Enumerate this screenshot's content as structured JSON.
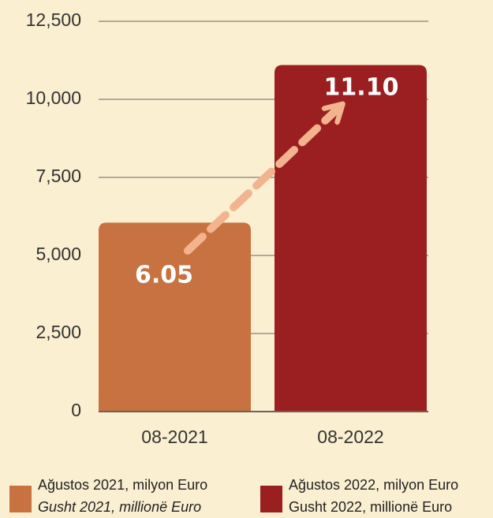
{
  "chart_data": {
    "type": "bar",
    "categories": [
      "08-2021",
      "08-2022"
    ],
    "values": [
      6050,
      11100
    ],
    "value_labels": [
      "6.05",
      "11.10"
    ],
    "colors": [
      "#c87241",
      "#9b1f20"
    ],
    "ylim": [
      0,
      12500
    ],
    "yticks": [
      {
        "value": 0,
        "label": "0"
      },
      {
        "value": 2500,
        "label": "2,500"
      },
      {
        "value": 5000,
        "label": "5,000"
      },
      {
        "value": 7500,
        "label": "7,500"
      },
      {
        "value": 10000,
        "label": "10,000"
      },
      {
        "value": 12500,
        "label": "12,500"
      }
    ],
    "grid": true,
    "legend": [
      {
        "line1": "Ağustos 2021, milyon Euro",
        "line2": "Gusht 2021, millionë Euro"
      },
      {
        "line1": "Ağustos 2022, milyon Euro",
        "line2": "Gusht 2022, millionë Euro"
      }
    ]
  }
}
